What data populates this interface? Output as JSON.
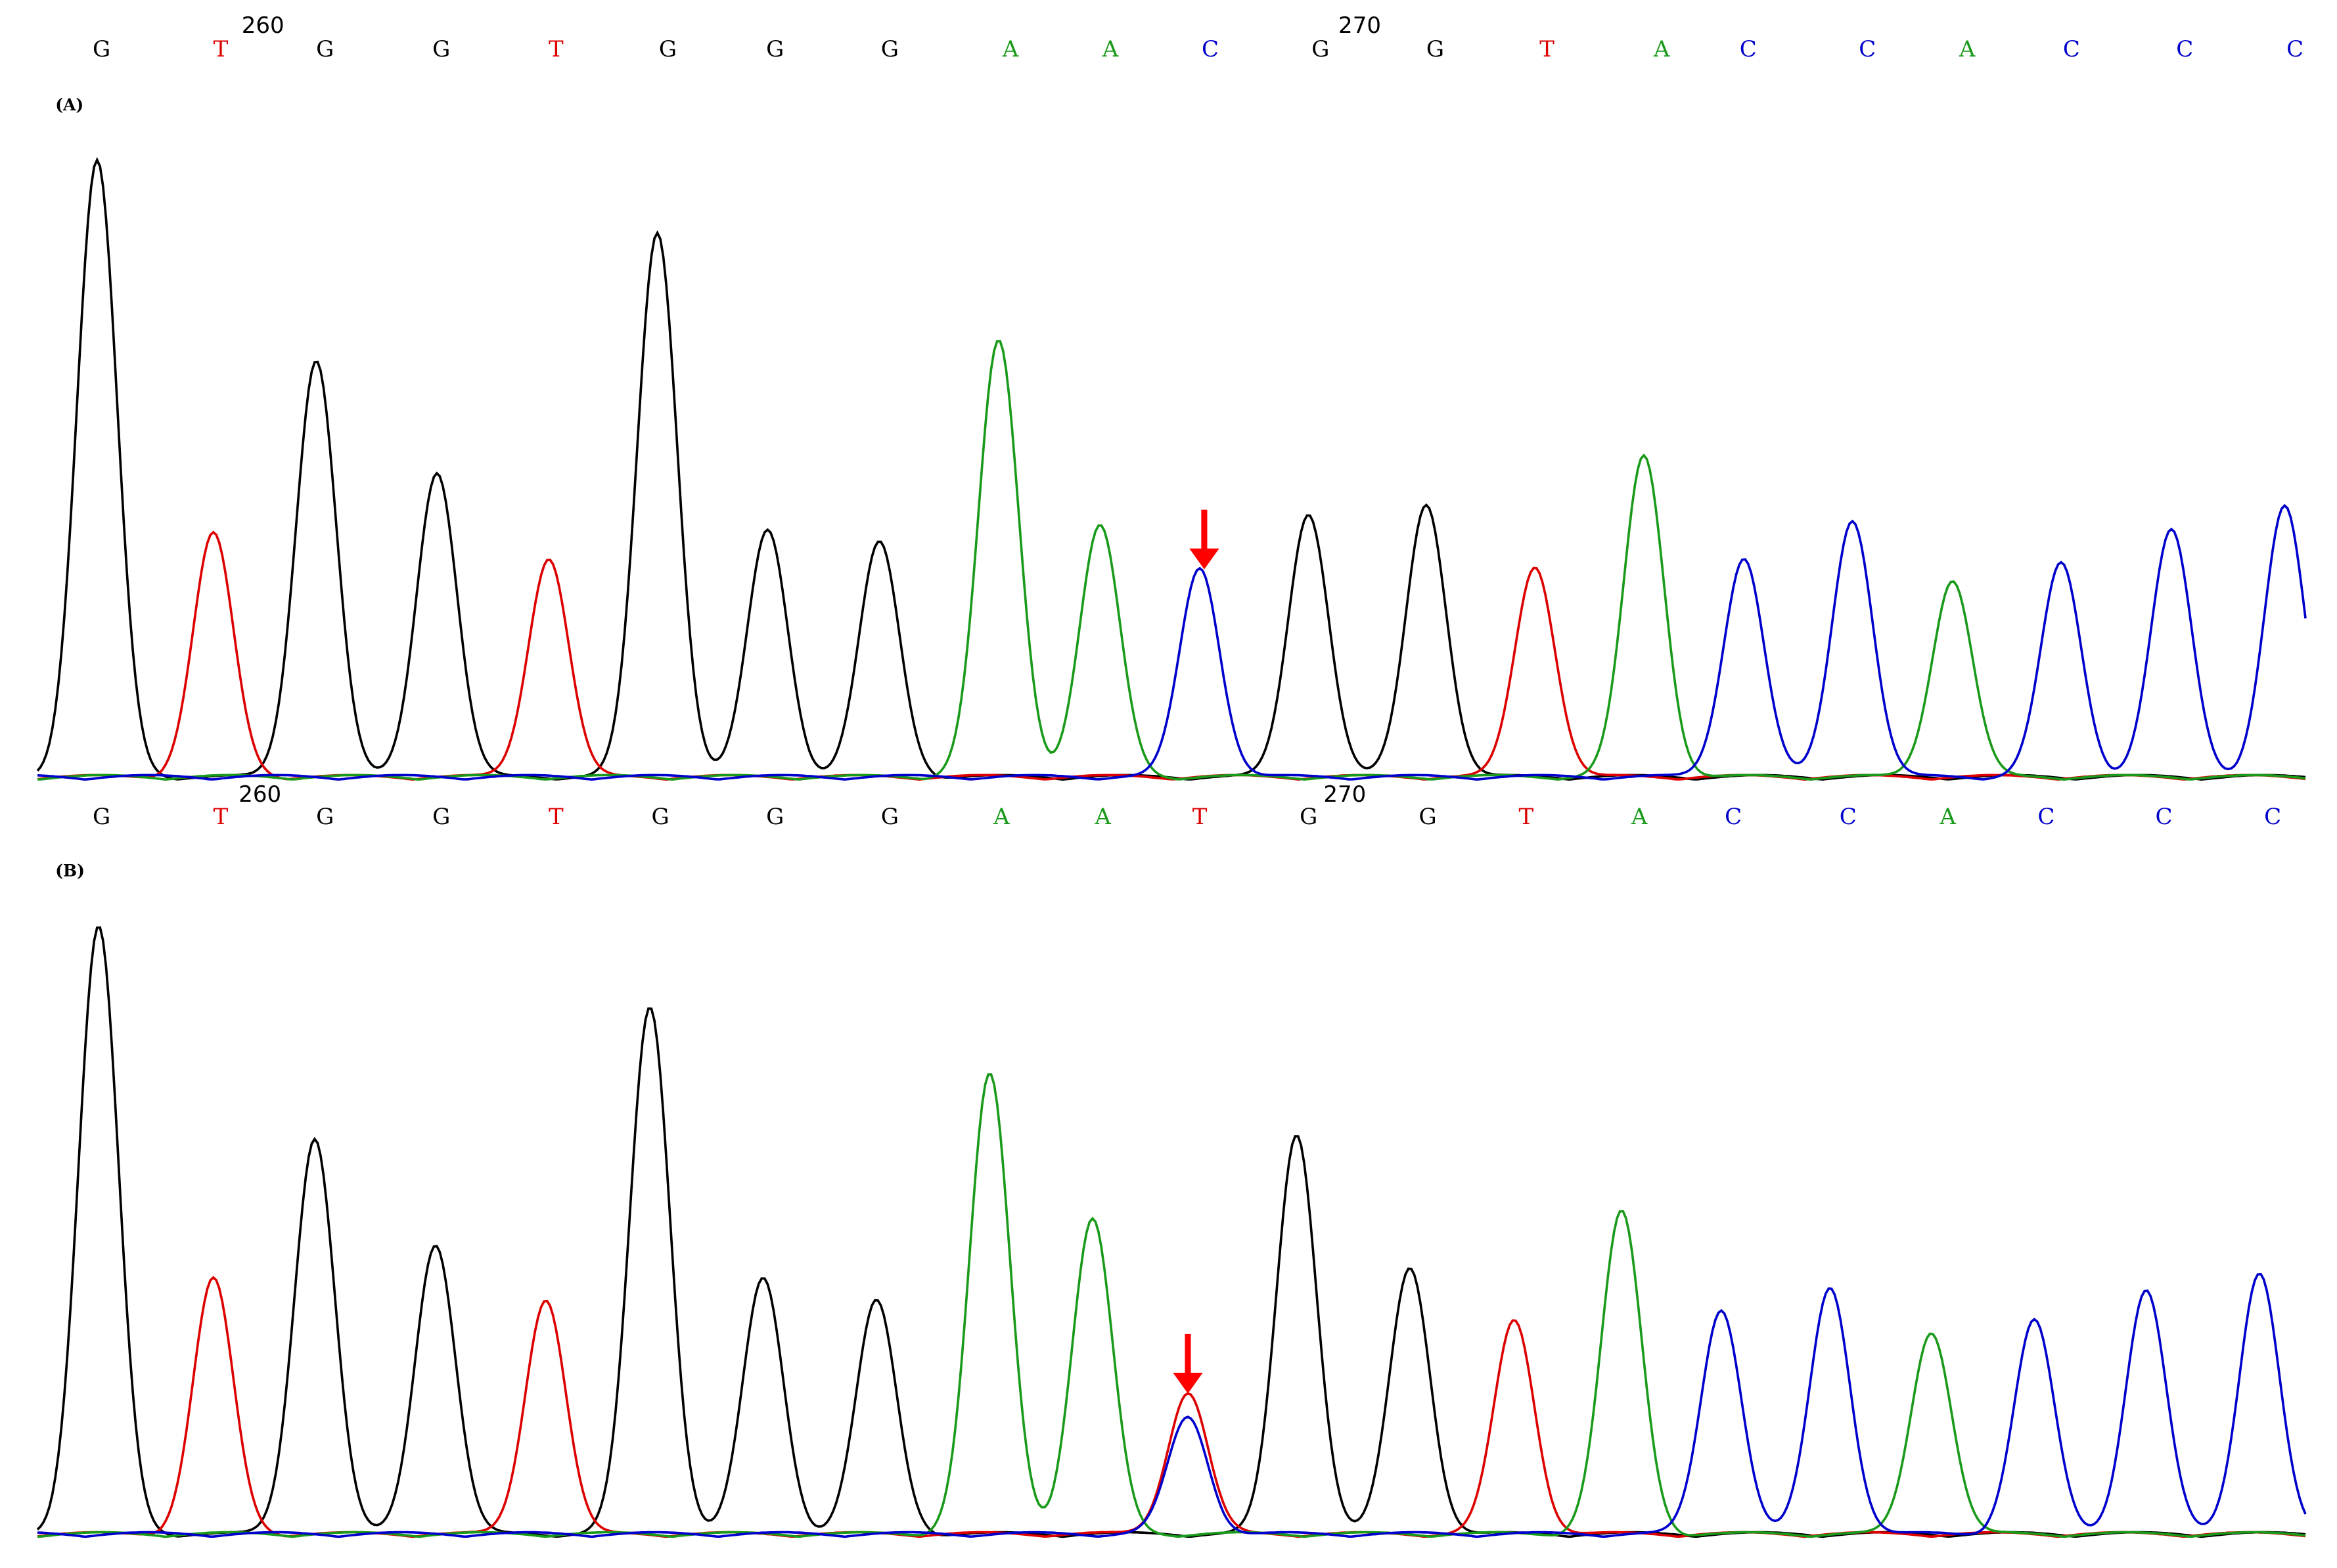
{
  "panels": [
    {
      "label": "(A)",
      "positions": [
        260,
        270
      ],
      "bases": [
        "G",
        "T",
        "G",
        "G",
        "T",
        "G",
        "G",
        "G",
        "A",
        "A",
        "C",
        "G",
        "G",
        "T",
        "A",
        "C",
        "C",
        "A",
        "C",
        "C",
        "C"
      ]
    },
    {
      "label": "(B)",
      "positions": [
        260,
        270
      ],
      "bases": [
        "G",
        "T",
        "G",
        "G",
        "T",
        "G",
        "G",
        "G",
        "A",
        "A",
        "T",
        "G",
        "G",
        "T",
        "A",
        "C",
        "C",
        "A",
        "C",
        "C",
        "C"
      ]
    }
  ]
}
